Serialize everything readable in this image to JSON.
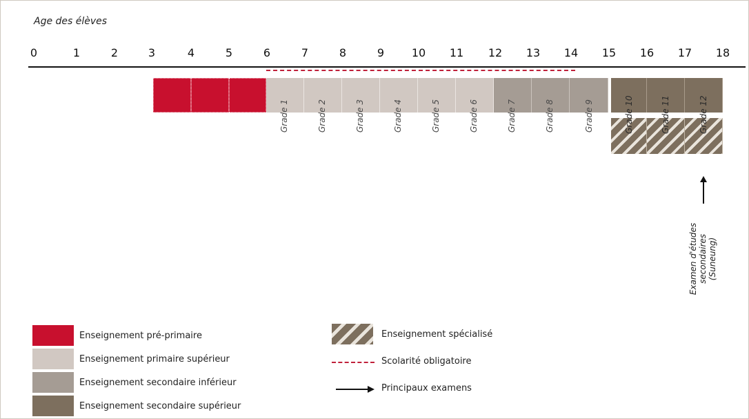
{
  "axis_title": "Age des élèves",
  "ages": [
    "0",
    "1",
    "2",
    "3",
    "4",
    "5",
    "6",
    "7",
    "8",
    "9",
    "10",
    "11",
    "12",
    "13",
    "14",
    "15",
    "16",
    "17",
    "18"
  ],
  "grades": [
    "Grade 1",
    "Grade 2",
    "Grade 3",
    "Grade 4",
    "Grade 5",
    "Grade 6",
    "Grade 7",
    "Grade 8",
    "Grade 9",
    "Grade 10",
    "Grade 11",
    "Grade 12"
  ],
  "special_grades": [
    "Grade 10",
    "Grade 11",
    "Grade 12"
  ],
  "exam_label": [
    "Examen d'études",
    "secondaires",
    "(Suneung)"
  ],
  "legend": {
    "pre_primary": "Enseignement pré-primaire",
    "primary": "Enseignement primaire supérieur",
    "lower_secondary": "Enseignement secondaire inférieur",
    "upper_secondary": "Enseignement secondaire supérieur",
    "specialized": "Enseignement spécialisé",
    "compulsory": "Scolarité obligatoire",
    "exams": "Principaux examens"
  },
  "colors": {
    "pre_primary": "#c8102e",
    "primary": "#d1c8c2",
    "lower_secondary": "#a59c94",
    "upper_secondary": "#7d6f5e",
    "compulsory": "#c0203a"
  }
}
